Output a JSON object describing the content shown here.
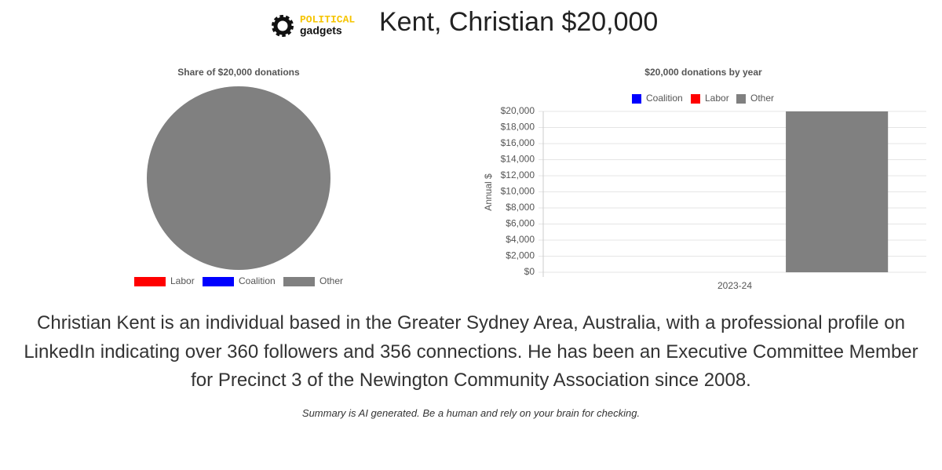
{
  "header": {
    "logo_top": "POLITICAL",
    "logo_bottom": "gadgets",
    "title": "Kent, Christian $20,000"
  },
  "chart_data": [
    {
      "type": "pie",
      "title": "Share of $20,000 donations",
      "categories": [
        "Labor",
        "Coalition",
        "Other"
      ],
      "values": [
        0,
        0,
        20000
      ],
      "colors": [
        "#ff0000",
        "#0000ff",
        "#808080"
      ],
      "legend": "bottom"
    },
    {
      "type": "bar",
      "title": "$20,000 donations by year",
      "y_label": "Annual $",
      "categories": [
        "2023-24"
      ],
      "series": [
        {
          "name": "Coalition",
          "color": "#0000ff",
          "values": [
            0
          ]
        },
        {
          "name": "Labor",
          "color": "#ff0000",
          "values": [
            0
          ]
        },
        {
          "name": "Other",
          "color": "#808080",
          "values": [
            20000
          ]
        }
      ],
      "ylim": [
        0,
        20000
      ],
      "yticks": [
        {
          "value": 0,
          "label": "$0"
        },
        {
          "value": 2000,
          "label": "$2,000"
        },
        {
          "value": 4000,
          "label": "$4,000"
        },
        {
          "value": 6000,
          "label": "$6,000"
        },
        {
          "value": 8000,
          "label": "$8,000"
        },
        {
          "value": 10000,
          "label": "$10,000"
        },
        {
          "value": 12000,
          "label": "$12,000"
        },
        {
          "value": 14000,
          "label": "$14,000"
        },
        {
          "value": 16000,
          "label": "$16,000"
        },
        {
          "value": 18000,
          "label": "$18,000"
        },
        {
          "value": 20000,
          "label": "$20,000"
        }
      ],
      "grid": true,
      "legend": "top"
    }
  ],
  "summary": "Christian Kent is an individual based in the Greater Sydney Area, Australia, with a professional profile on LinkedIn indicating over 360 followers and 356 connections. He has been an Executive Committee Member for Precinct 3 of the Newington Community Association since 2008.",
  "disclaimer": "Summary is AI generated. Be a human and rely on your brain for checking."
}
